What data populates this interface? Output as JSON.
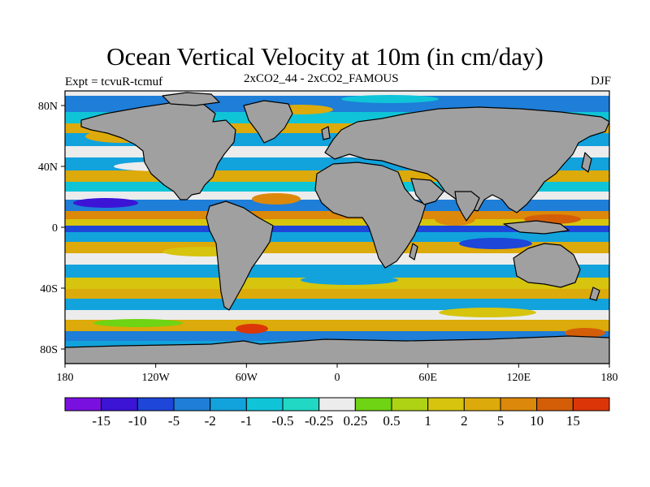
{
  "title": "Ocean Vertical Velocity at 10m (in cm/day)",
  "experiment_label": "Expt = tcvuR-tcmuf",
  "comparison_label": "2xCO2_44 - 2xCO2_FAMOUS",
  "season_label": "DJF",
  "axes": {
    "x_ticks": [
      "180",
      "120W",
      "60W",
      "0",
      "60E",
      "120E",
      "180"
    ],
    "y_ticks": [
      "80N",
      "40N",
      "0",
      "40S",
      "80S"
    ]
  },
  "colorbar": {
    "colors": [
      "#7a10e0",
      "#3c14d6",
      "#1e46d8",
      "#1e7ed8",
      "#12a2dc",
      "#10c4d8",
      "#20d8c4",
      "#ececec",
      "#6ed414",
      "#aed214",
      "#d6c40e",
      "#dcaa0a",
      "#dc880a",
      "#d45e08",
      "#dc3608"
    ],
    "labels": [
      "-15",
      "-10",
      "-5",
      "-2",
      "-1",
      "-0.5",
      "-0.25",
      "0.25",
      "0.5",
      "1",
      "2",
      "5",
      "10",
      "15"
    ]
  },
  "land_color": "#a0a0a0"
}
